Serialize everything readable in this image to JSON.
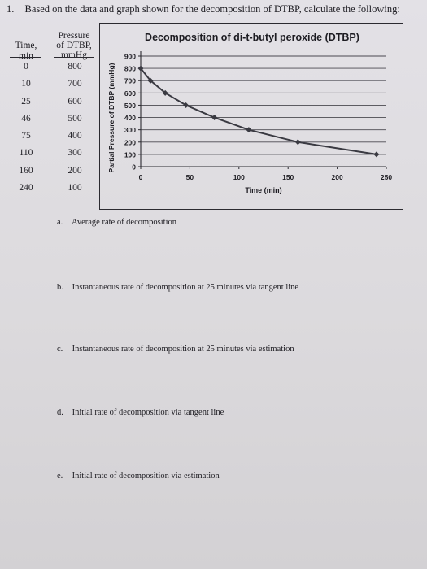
{
  "question": {
    "number": "1.",
    "text": "Based on the data and graph shown for the decomposition of DTBP, calculate the following:"
  },
  "table": {
    "time_header": "Time,\nmin",
    "pressure_header": "Pressure\nof DTBP,\nmmHg",
    "rows": [
      {
        "time": "0",
        "pressure": "800"
      },
      {
        "time": "10",
        "pressure": "700"
      },
      {
        "time": "25",
        "pressure": "600"
      },
      {
        "time": "46",
        "pressure": "500"
      },
      {
        "time": "75",
        "pressure": "400"
      },
      {
        "time": "110",
        "pressure": "300"
      },
      {
        "time": "160",
        "pressure": "200"
      },
      {
        "time": "240",
        "pressure": "100"
      }
    ]
  },
  "chart_data": {
    "type": "line",
    "title": "Decomposition of di-t-butyl peroxide (DTBP)",
    "xlabel": "Time (min)",
    "ylabel": "Partial Pressure of DTBP (mmHg)",
    "x": [
      0,
      10,
      25,
      46,
      75,
      110,
      160,
      240
    ],
    "y": [
      800,
      700,
      600,
      500,
      400,
      300,
      200,
      100
    ],
    "xlim": [
      0,
      250
    ],
    "ylim": [
      0,
      900
    ],
    "xticks": [
      0,
      50,
      100,
      150,
      200,
      250
    ],
    "yticks": [
      0,
      100,
      200,
      300,
      400,
      500,
      600,
      700,
      800,
      900
    ],
    "grid": "horizontal",
    "line_color": "#3a3a42",
    "marker": "diamond"
  },
  "parts": [
    {
      "letter": "a.",
      "text": "Average rate of decomposition"
    },
    {
      "letter": "b.",
      "text": "Instantaneous rate of decomposition at 25 minutes via tangent line"
    },
    {
      "letter": "c.",
      "text": "Instantaneous rate of decomposition at 25 minutes via estimation"
    },
    {
      "letter": "d.",
      "text": "Initial rate of decomposition via tangent line"
    },
    {
      "letter": "e.",
      "text": "Initial rate of decomposition via estimation"
    }
  ]
}
